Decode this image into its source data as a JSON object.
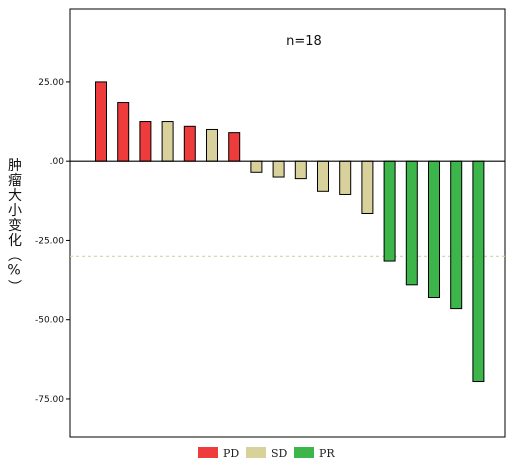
{
  "chart_data": {
    "type": "bar",
    "title": "",
    "annotation": "n=18",
    "ylabel": "肿瘤大小变化（%）",
    "xlabel": "",
    "ylim": [
      -87,
      48
    ],
    "yticks": [
      {
        "value": 25,
        "label": "25.00"
      },
      {
        "value": 0,
        "label": ".00"
      },
      {
        "value": -25,
        "label": "-25.00"
      },
      {
        "value": -50,
        "label": "-50.00"
      },
      {
        "value": -75,
        "label": "-75.00"
      }
    ],
    "reference_line": {
      "value": -30,
      "style": "dashed",
      "color": "#d6d3a6"
    },
    "zero_line": true,
    "legend": {
      "placement": "bottom",
      "entries": [
        {
          "name": "PD",
          "color": "#ee3b3b"
        },
        {
          "name": "SD",
          "color": "#d8d19c"
        },
        {
          "name": "PR",
          "color": "#3cb54a"
        }
      ]
    },
    "bars": [
      {
        "value": 25,
        "group": "PD"
      },
      {
        "value": 18.5,
        "group": "PD"
      },
      {
        "value": 12.5,
        "group": "PD"
      },
      {
        "value": 12.5,
        "group": "SD"
      },
      {
        "value": 11,
        "group": "PD"
      },
      {
        "value": 10,
        "group": "SD"
      },
      {
        "value": 9,
        "group": "PD"
      },
      {
        "value": -3.5,
        "group": "SD"
      },
      {
        "value": -5,
        "group": "SD"
      },
      {
        "value": -5.5,
        "group": "SD"
      },
      {
        "value": -9.5,
        "group": "SD"
      },
      {
        "value": -10.5,
        "group": "SD"
      },
      {
        "value": -16.5,
        "group": "SD"
      },
      {
        "value": -31.5,
        "group": "PR"
      },
      {
        "value": -39,
        "group": "PR"
      },
      {
        "value": -43,
        "group": "PR"
      },
      {
        "value": -46.5,
        "group": "PR"
      },
      {
        "value": -69.5,
        "group": "PR"
      }
    ]
  }
}
